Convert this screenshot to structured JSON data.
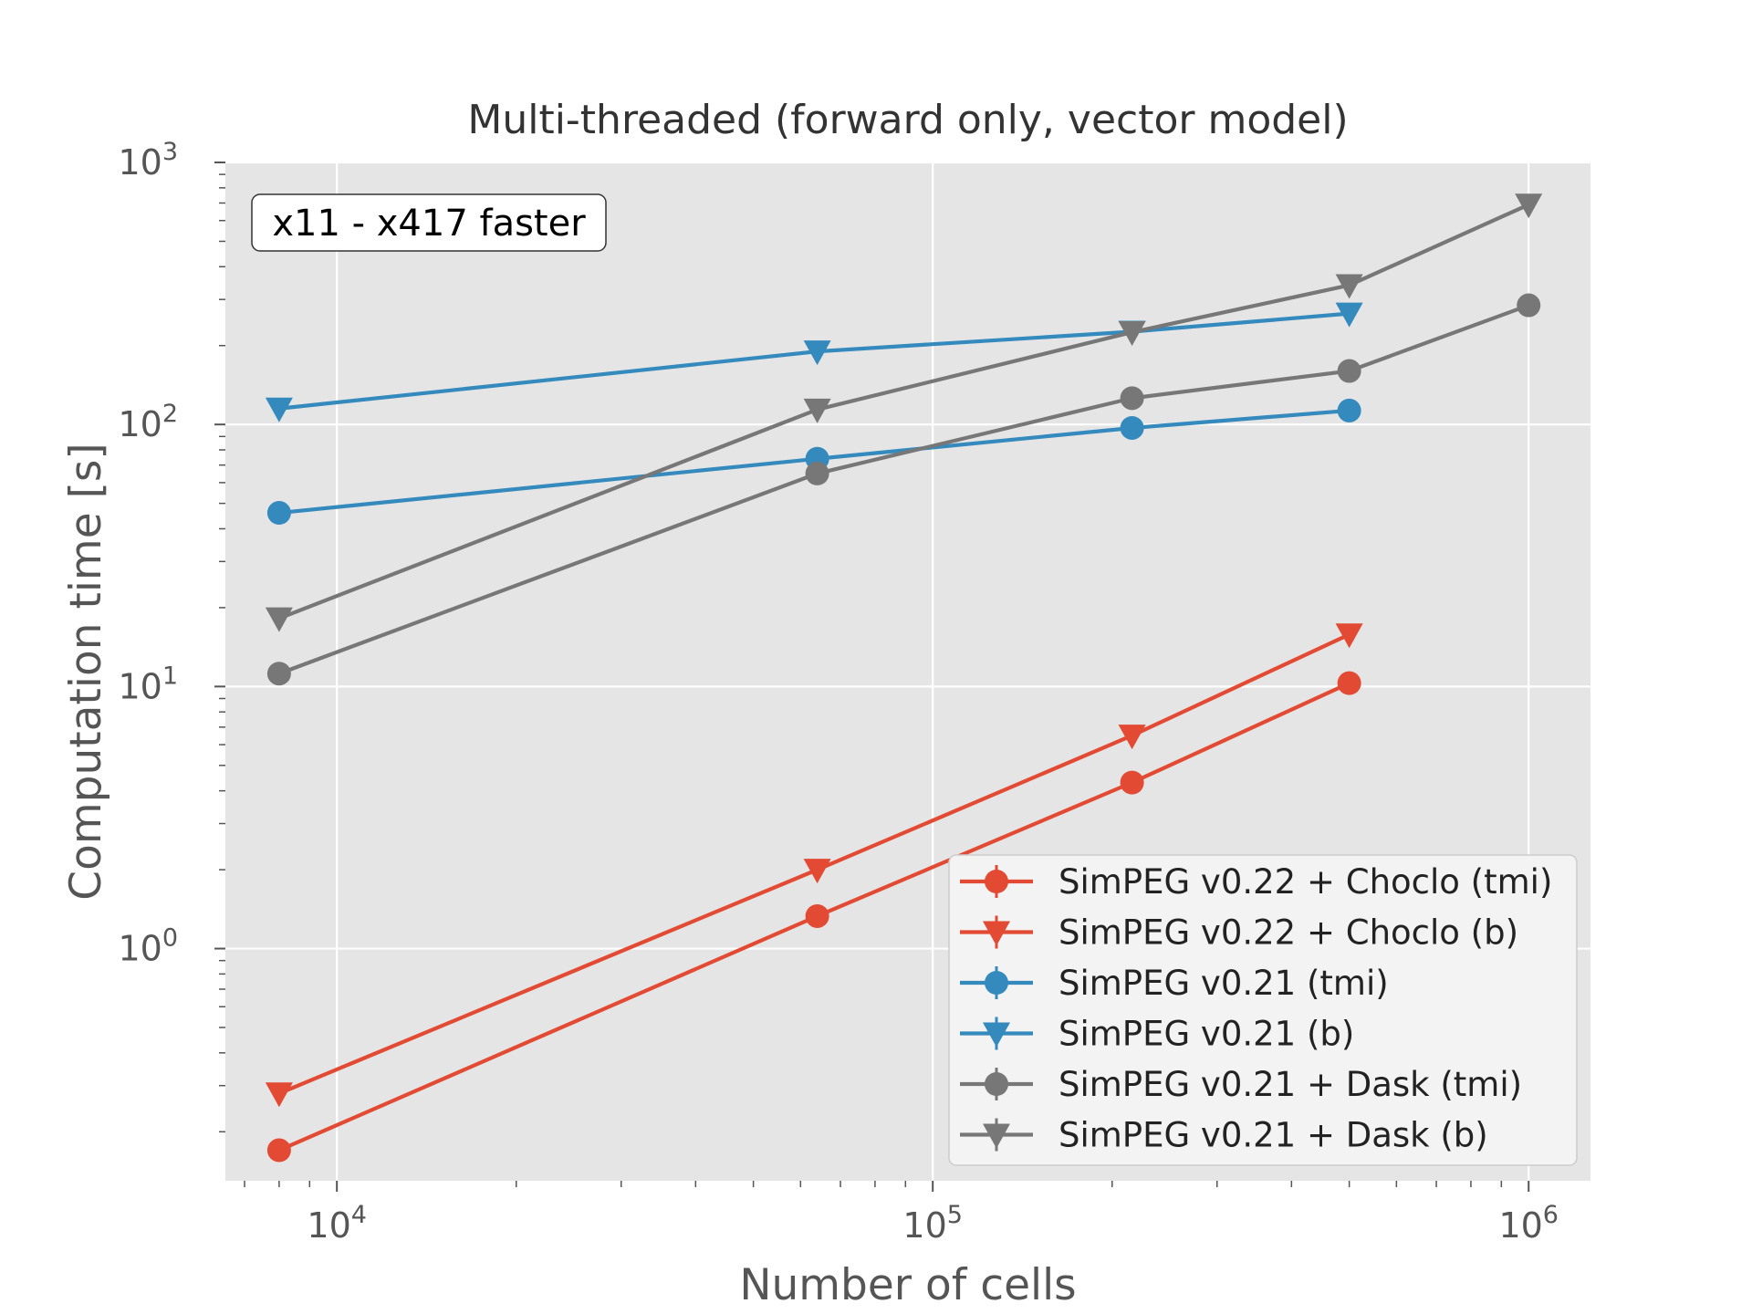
{
  "chart_data": {
    "type": "line",
    "title": "Multi-threaded (forward only, vector model)",
    "xlabel": "Number of cells",
    "ylabel": "Computation time [s]",
    "x_scale": "log",
    "y_scale": "log",
    "xlim": [
      6500,
      1270000
    ],
    "ylim": [
      0.13,
      1000
    ],
    "grid": true,
    "legend_position": "lower right",
    "annotation": "x11 - x417 faster",
    "x_ticks": [
      {
        "value": 10000,
        "base": "10",
        "exp": "4"
      },
      {
        "value": 100000,
        "base": "10",
        "exp": "5"
      },
      {
        "value": 1000000,
        "base": "10",
        "exp": "6"
      }
    ],
    "y_ticks": [
      {
        "value": 1,
        "base": "10",
        "exp": "0"
      },
      {
        "value": 10,
        "base": "10",
        "exp": "1"
      },
      {
        "value": 100,
        "base": "10",
        "exp": "2"
      },
      {
        "value": 1000,
        "base": "10",
        "exp": "3"
      }
    ],
    "series": [
      {
        "name": "SimPEG v0.22 + Choclo (tmi)",
        "color": "#E24A33",
        "marker": "circle",
        "x": [
          8000,
          64000,
          216000,
          500000
        ],
        "y": [
          0.17,
          1.33,
          4.3,
          10.3
        ]
      },
      {
        "name": "SimPEG v0.22 + Choclo (b)",
        "color": "#E24A33",
        "marker": "triangle-down",
        "x": [
          8000,
          64000,
          216000,
          500000
        ],
        "y": [
          0.28,
          2.0,
          6.5,
          15.8
        ]
      },
      {
        "name": "SimPEG v0.21 (tmi)",
        "color": "#348ABD",
        "marker": "circle",
        "x": [
          8000,
          64000,
          216000,
          500000
        ],
        "y": [
          46,
          74,
          97,
          113
        ]
      },
      {
        "name": "SimPEG v0.21 (b)",
        "color": "#348ABD",
        "marker": "triangle-down",
        "x": [
          8000,
          64000,
          216000,
          500000
        ],
        "y": [
          115,
          190,
          226,
          265
        ]
      },
      {
        "name": "SimPEG v0.21 + Dask (tmi)",
        "color": "#777777",
        "marker": "circle",
        "x": [
          8000,
          64000,
          216000,
          500000,
          1000000
        ],
        "y": [
          11.2,
          65,
          126,
          160,
          285
        ]
      },
      {
        "name": "SimPEG v0.21 + Dask (b)",
        "color": "#777777",
        "marker": "triangle-down",
        "x": [
          8000,
          64000,
          216000,
          500000,
          1000000
        ],
        "y": [
          18.2,
          114,
          225,
          340,
          690
        ]
      }
    ]
  }
}
